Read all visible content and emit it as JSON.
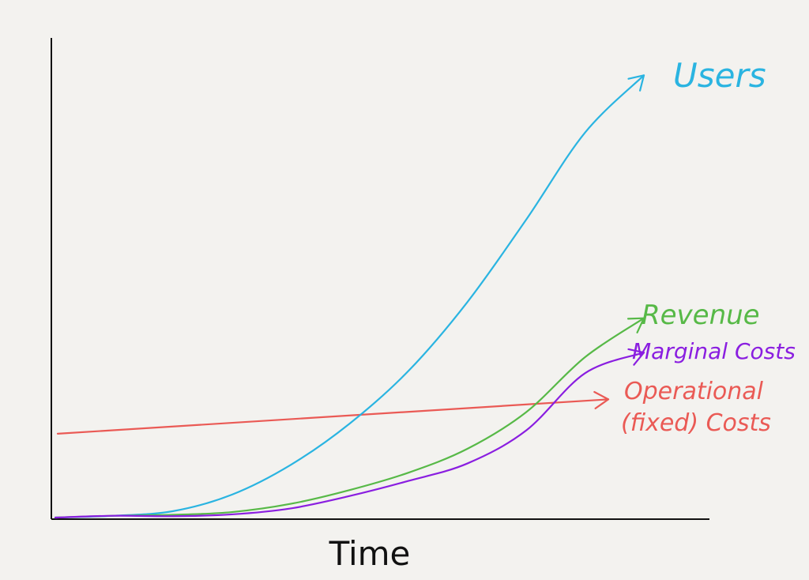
{
  "chart_data": {
    "type": "line",
    "title": "",
    "xlabel": "Time",
    "ylabel": "",
    "xlim": [
      0,
      10
    ],
    "ylim": [
      0,
      10
    ],
    "grid": false,
    "legend": "inline labels at line ends",
    "series": [
      {
        "name": "Users",
        "color": "#2ab4e1",
        "x": [
          0,
          1,
          2,
          3,
          4,
          5,
          6,
          7,
          8,
          9,
          10
        ],
        "y": [
          0.0,
          0.04,
          0.14,
          0.5,
          1.15,
          2.05,
          3.2,
          4.7,
          6.5,
          8.4,
          9.65
        ]
      },
      {
        "name": "Revenue",
        "color": "#57b947",
        "x": [
          0,
          1,
          2,
          3,
          4,
          5,
          6,
          7,
          8,
          9,
          10
        ],
        "y": [
          0.0,
          0.04,
          0.06,
          0.12,
          0.3,
          0.6,
          0.98,
          1.5,
          2.3,
          3.5,
          4.35
        ]
      },
      {
        "name": "Marginal Costs",
        "color": "#8a1ee0",
        "x": [
          0,
          1,
          2,
          3,
          4,
          5,
          6,
          7,
          8,
          9,
          10
        ],
        "y": [
          0.0,
          0.04,
          0.03,
          0.07,
          0.2,
          0.47,
          0.8,
          1.18,
          1.9,
          3.15,
          3.6
        ]
      },
      {
        "name": "Operational (fixed) Costs",
        "color": "#ea5a55",
        "x": [
          0,
          10
        ],
        "y": [
          1.83,
          2.58
        ]
      }
    ]
  },
  "labels": {
    "users": "Users",
    "revenue": "Revenue",
    "marginal": "Marginal Costs",
    "operational_1": "Operational",
    "operational_2": "(fixed) Costs"
  }
}
